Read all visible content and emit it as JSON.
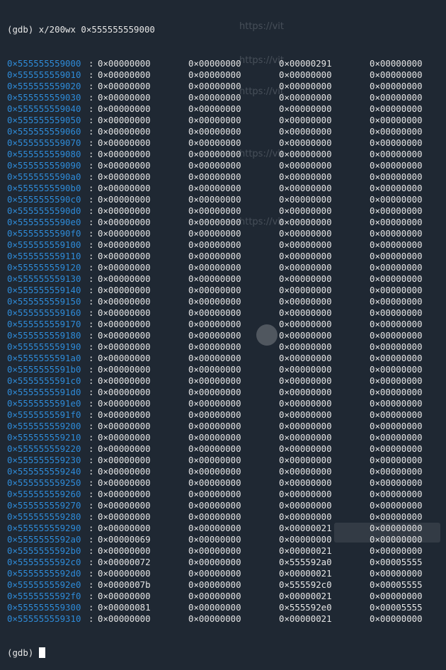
{
  "command_line": "(gdb) x/200wx 0×555555559000",
  "prompt": "(gdb) ",
  "background_color": "#1f2833",
  "address_color": "#2e8bd8",
  "rows": [
    {
      "addr": "0×555555559000",
      "v": [
        "0×00000000",
        "0×00000000",
        "0×00000291",
        "0×00000000"
      ]
    },
    {
      "addr": "0×555555559010",
      "v": [
        "0×00000000",
        "0×00000000",
        "0×00000000",
        "0×00000000"
      ]
    },
    {
      "addr": "0×555555559020",
      "v": [
        "0×00000000",
        "0×00000000",
        "0×00000000",
        "0×00000000"
      ]
    },
    {
      "addr": "0×555555559030",
      "v": [
        "0×00000000",
        "0×00000000",
        "0×00000000",
        "0×00000000"
      ]
    },
    {
      "addr": "0×555555559040",
      "v": [
        "0×00000000",
        "0×00000000",
        "0×00000000",
        "0×00000000"
      ]
    },
    {
      "addr": "0×555555559050",
      "v": [
        "0×00000000",
        "0×00000000",
        "0×00000000",
        "0×00000000"
      ]
    },
    {
      "addr": "0×555555559060",
      "v": [
        "0×00000000",
        "0×00000000",
        "0×00000000",
        "0×00000000"
      ]
    },
    {
      "addr": "0×555555559070",
      "v": [
        "0×00000000",
        "0×00000000",
        "0×00000000",
        "0×00000000"
      ]
    },
    {
      "addr": "0×555555559080",
      "v": [
        "0×00000000",
        "0×00000000",
        "0×00000000",
        "0×00000000"
      ]
    },
    {
      "addr": "0×555555559090",
      "v": [
        "0×00000000",
        "0×00000000",
        "0×00000000",
        "0×00000000"
      ]
    },
    {
      "addr": "0×5555555590a0",
      "v": [
        "0×00000000",
        "0×00000000",
        "0×00000000",
        "0×00000000"
      ]
    },
    {
      "addr": "0×5555555590b0",
      "v": [
        "0×00000000",
        "0×00000000",
        "0×00000000",
        "0×00000000"
      ]
    },
    {
      "addr": "0×5555555590c0",
      "v": [
        "0×00000000",
        "0×00000000",
        "0×00000000",
        "0×00000000"
      ]
    },
    {
      "addr": "0×5555555590d0",
      "v": [
        "0×00000000",
        "0×00000000",
        "0×00000000",
        "0×00000000"
      ]
    },
    {
      "addr": "0×5555555590e0",
      "v": [
        "0×00000000",
        "0×00000000",
        "0×00000000",
        "0×00000000"
      ]
    },
    {
      "addr": "0×5555555590f0",
      "v": [
        "0×00000000",
        "0×00000000",
        "0×00000000",
        "0×00000000"
      ]
    },
    {
      "addr": "0×555555559100",
      "v": [
        "0×00000000",
        "0×00000000",
        "0×00000000",
        "0×00000000"
      ]
    },
    {
      "addr": "0×555555559110",
      "v": [
        "0×00000000",
        "0×00000000",
        "0×00000000",
        "0×00000000"
      ]
    },
    {
      "addr": "0×555555559120",
      "v": [
        "0×00000000",
        "0×00000000",
        "0×00000000",
        "0×00000000"
      ]
    },
    {
      "addr": "0×555555559130",
      "v": [
        "0×00000000",
        "0×00000000",
        "0×00000000",
        "0×00000000"
      ]
    },
    {
      "addr": "0×555555559140",
      "v": [
        "0×00000000",
        "0×00000000",
        "0×00000000",
        "0×00000000"
      ]
    },
    {
      "addr": "0×555555559150",
      "v": [
        "0×00000000",
        "0×00000000",
        "0×00000000",
        "0×00000000"
      ]
    },
    {
      "addr": "0×555555559160",
      "v": [
        "0×00000000",
        "0×00000000",
        "0×00000000",
        "0×00000000"
      ]
    },
    {
      "addr": "0×555555559170",
      "v": [
        "0×00000000",
        "0×00000000",
        "0×00000000",
        "0×00000000"
      ]
    },
    {
      "addr": "0×555555559180",
      "v": [
        "0×00000000",
        "0×00000000",
        "0×00000000",
        "0×00000000"
      ]
    },
    {
      "addr": "0×555555559190",
      "v": [
        "0×00000000",
        "0×00000000",
        "0×00000000",
        "0×00000000"
      ]
    },
    {
      "addr": "0×5555555591a0",
      "v": [
        "0×00000000",
        "0×00000000",
        "0×00000000",
        "0×00000000"
      ]
    },
    {
      "addr": "0×5555555591b0",
      "v": [
        "0×00000000",
        "0×00000000",
        "0×00000000",
        "0×00000000"
      ]
    },
    {
      "addr": "0×5555555591c0",
      "v": [
        "0×00000000",
        "0×00000000",
        "0×00000000",
        "0×00000000"
      ]
    },
    {
      "addr": "0×5555555591d0",
      "v": [
        "0×00000000",
        "0×00000000",
        "0×00000000",
        "0×00000000"
      ]
    },
    {
      "addr": "0×5555555591e0",
      "v": [
        "0×00000000",
        "0×00000000",
        "0×00000000",
        "0×00000000"
      ]
    },
    {
      "addr": "0×5555555591f0",
      "v": [
        "0×00000000",
        "0×00000000",
        "0×00000000",
        "0×00000000"
      ]
    },
    {
      "addr": "0×555555559200",
      "v": [
        "0×00000000",
        "0×00000000",
        "0×00000000",
        "0×00000000"
      ]
    },
    {
      "addr": "0×555555559210",
      "v": [
        "0×00000000",
        "0×00000000",
        "0×00000000",
        "0×00000000"
      ]
    },
    {
      "addr": "0×555555559220",
      "v": [
        "0×00000000",
        "0×00000000",
        "0×00000000",
        "0×00000000"
      ]
    },
    {
      "addr": "0×555555559230",
      "v": [
        "0×00000000",
        "0×00000000",
        "0×00000000",
        "0×00000000"
      ]
    },
    {
      "addr": "0×555555559240",
      "v": [
        "0×00000000",
        "0×00000000",
        "0×00000000",
        "0×00000000"
      ]
    },
    {
      "addr": "0×555555559250",
      "v": [
        "0×00000000",
        "0×00000000",
        "0×00000000",
        "0×00000000"
      ]
    },
    {
      "addr": "0×555555559260",
      "v": [
        "0×00000000",
        "0×00000000",
        "0×00000000",
        "0×00000000"
      ]
    },
    {
      "addr": "0×555555559270",
      "v": [
        "0×00000000",
        "0×00000000",
        "0×00000000",
        "0×00000000"
      ]
    },
    {
      "addr": "0×555555559280",
      "v": [
        "0×00000000",
        "0×00000000",
        "0×00000000",
        "0×00000000"
      ]
    },
    {
      "addr": "0×555555559290",
      "v": [
        "0×00000000",
        "0×00000000",
        "0×00000021",
        "0×00000000"
      ]
    },
    {
      "addr": "0×5555555592a0",
      "v": [
        "0×00000069",
        "0×00000000",
        "0×00000000",
        "0×00000000"
      ]
    },
    {
      "addr": "0×5555555592b0",
      "v": [
        "0×00000000",
        "0×00000000",
        "0×00000021",
        "0×00000000"
      ]
    },
    {
      "addr": "0×5555555592c0",
      "v": [
        "0×00000072",
        "0×00000000",
        "0×555592a0",
        "0×00005555"
      ]
    },
    {
      "addr": "0×5555555592d0",
      "v": [
        "0×00000000",
        "0×00000000",
        "0×00000021",
        "0×00000000"
      ]
    },
    {
      "addr": "0×5555555592e0",
      "v": [
        "0×0000007b",
        "0×00000000",
        "0×555592c0",
        "0×00005555"
      ]
    },
    {
      "addr": "0×5555555592f0",
      "v": [
        "0×00000000",
        "0×00000000",
        "0×00000021",
        "0×00000000"
      ]
    },
    {
      "addr": "0×555555559300",
      "v": [
        "0×00000081",
        "0×00000000",
        "0×555592e0",
        "0×00005555"
      ]
    },
    {
      "addr": "0×555555559310",
      "v": [
        "0×00000000",
        "0×00000000",
        "0×00000021",
        "0×00000000"
      ]
    }
  ]
}
